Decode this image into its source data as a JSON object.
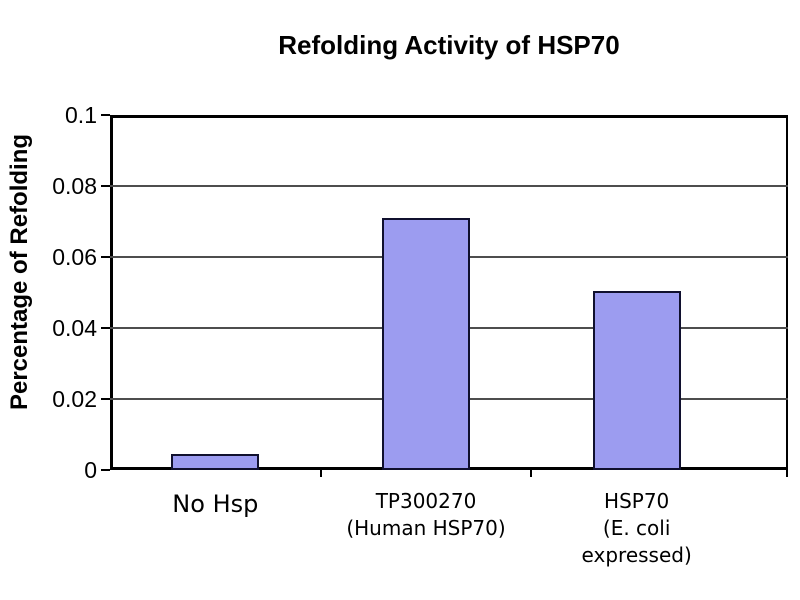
{
  "chart_data": {
    "type": "bar",
    "title": "Refolding Activity of HSP70",
    "ylabel": "Percentage of Refolding",
    "xlabel": "",
    "categories": [
      "No Hsp",
      "TP300270\n(Human HSP70)",
      "HSP70\n(E. coli expressed)"
    ],
    "values": [
      0.0045,
      0.071,
      0.0505
    ],
    "ylim": [
      0,
      0.1
    ],
    "yticks": [
      0,
      0.02,
      0.04,
      0.06,
      0.08,
      0.1
    ],
    "ytick_labels": [
      "0",
      "0.02",
      "0.04",
      "0.06",
      "0.08",
      "0.1"
    ],
    "grid": true,
    "legend": false,
    "colors": {
      "bar_fill": "#9c9cf0",
      "bar_border": "#10102e",
      "gridline": "#4d4d4d",
      "axis": "#000000",
      "background": "#ffffff"
    }
  }
}
